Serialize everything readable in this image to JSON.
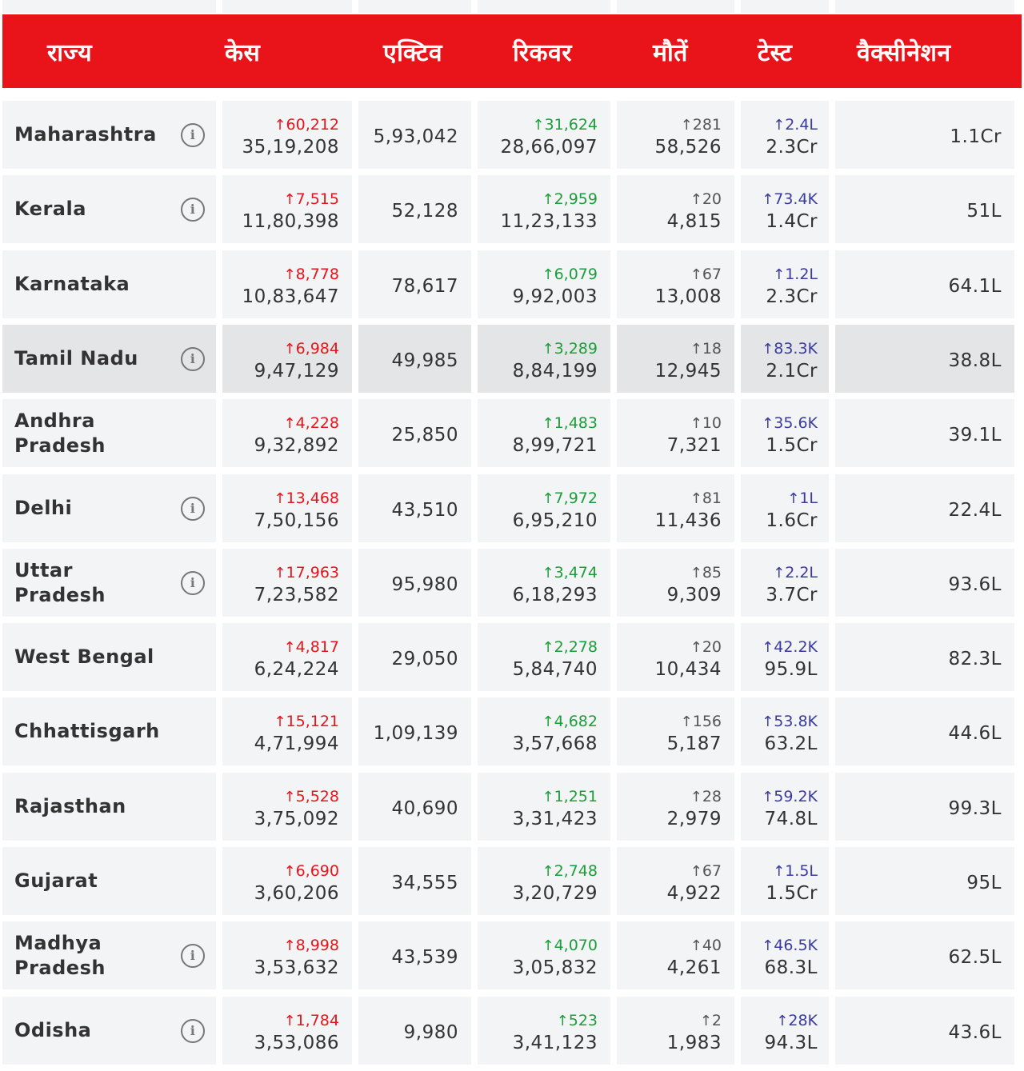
{
  "header": {
    "state": "राज्य",
    "cases": "केस",
    "active": "एक्टिव",
    "recovered": "रिकवर",
    "deaths": "मौतें",
    "tests": "टेस्ट",
    "vaccination": "वैक्सीनेशन"
  },
  "colors": {
    "header_bg": "#e8141a",
    "cases_delta": "#e8141a",
    "recovered_delta": "#1b9e3a",
    "deaths_delta": "#555555",
    "tests_delta": "#3a3aa0",
    "cell_bg": "#f3f4f6",
    "highlight_bg": "#e4e5e7"
  },
  "arrow": "↑",
  "info_glyph": "i",
  "rows": [
    {
      "state": "Maharashtra",
      "info": true,
      "cases_delta": "60,212",
      "cases": "35,19,208",
      "active": "5,93,042",
      "rec_delta": "31,624",
      "recovered": "28,66,097",
      "death_delta": "281",
      "deaths": "58,526",
      "test_delta": "2.4L",
      "tests": "2.3Cr",
      "vaccination": "1.1Cr"
    },
    {
      "state": "Kerala",
      "info": true,
      "cases_delta": "7,515",
      "cases": "11,80,398",
      "active": "52,128",
      "rec_delta": "2,959",
      "recovered": "11,23,133",
      "death_delta": "20",
      "deaths": "4,815",
      "test_delta": "73.4K",
      "tests": "1.4Cr",
      "vaccination": "51L"
    },
    {
      "state": "Karnataka",
      "info": false,
      "cases_delta": "8,778",
      "cases": "10,83,647",
      "active": "78,617",
      "rec_delta": "6,079",
      "recovered": "9,92,003",
      "death_delta": "67",
      "deaths": "13,008",
      "test_delta": "1.2L",
      "tests": "2.3Cr",
      "vaccination": "64.1L"
    },
    {
      "state": "Tamil Nadu",
      "info": true,
      "highlight": true,
      "cases_delta": "6,984",
      "cases": "9,47,129",
      "active": "49,985",
      "rec_delta": "3,289",
      "recovered": "8,84,199",
      "death_delta": "18",
      "deaths": "12,945",
      "test_delta": "83.3K",
      "tests": "2.1Cr",
      "vaccination": "38.8L"
    },
    {
      "state": "Andhra Pradesh",
      "info": false,
      "cases_delta": "4,228",
      "cases": "9,32,892",
      "active": "25,850",
      "rec_delta": "1,483",
      "recovered": "8,99,721",
      "death_delta": "10",
      "deaths": "7,321",
      "test_delta": "35.6K",
      "tests": "1.5Cr",
      "vaccination": "39.1L"
    },
    {
      "state": "Delhi",
      "info": true,
      "cases_delta": "13,468",
      "cases": "7,50,156",
      "active": "43,510",
      "rec_delta": "7,972",
      "recovered": "6,95,210",
      "death_delta": "81",
      "deaths": "11,436",
      "test_delta": "1L",
      "tests": "1.6Cr",
      "vaccination": "22.4L"
    },
    {
      "state": "Uttar Pradesh",
      "info": true,
      "cases_delta": "17,963",
      "cases": "7,23,582",
      "active": "95,980",
      "rec_delta": "3,474",
      "recovered": "6,18,293",
      "death_delta": "85",
      "deaths": "9,309",
      "test_delta": "2.2L",
      "tests": "3.7Cr",
      "vaccination": "93.6L"
    },
    {
      "state": "West Bengal",
      "info": false,
      "cases_delta": "4,817",
      "cases": "6,24,224",
      "active": "29,050",
      "rec_delta": "2,278",
      "recovered": "5,84,740",
      "death_delta": "20",
      "deaths": "10,434",
      "test_delta": "42.2K",
      "tests": "95.9L",
      "vaccination": "82.3L"
    },
    {
      "state": "Chhattisgarh",
      "info": false,
      "cases_delta": "15,121",
      "cases": "4,71,994",
      "active": "1,09,139",
      "rec_delta": "4,682",
      "recovered": "3,57,668",
      "death_delta": "156",
      "deaths": "5,187",
      "test_delta": "53.8K",
      "tests": "63.2L",
      "vaccination": "44.6L"
    },
    {
      "state": "Rajasthan",
      "info": false,
      "cases_delta": "5,528",
      "cases": "3,75,092",
      "active": "40,690",
      "rec_delta": "1,251",
      "recovered": "3,31,423",
      "death_delta": "28",
      "deaths": "2,979",
      "test_delta": "59.2K",
      "tests": "74.8L",
      "vaccination": "99.3L"
    },
    {
      "state": "Gujarat",
      "info": false,
      "cases_delta": "6,690",
      "cases": "3,60,206",
      "active": "34,555",
      "rec_delta": "2,748",
      "recovered": "3,20,729",
      "death_delta": "67",
      "deaths": "4,922",
      "test_delta": "1.5L",
      "tests": "1.5Cr",
      "vaccination": "95L"
    },
    {
      "state": "Madhya Pradesh",
      "info": true,
      "cases_delta": "8,998",
      "cases": "3,53,632",
      "active": "43,539",
      "rec_delta": "4,070",
      "recovered": "3,05,832",
      "death_delta": "40",
      "deaths": "4,261",
      "test_delta": "46.5K",
      "tests": "68.3L",
      "vaccination": "62.5L"
    },
    {
      "state": "Odisha",
      "info": true,
      "cases_delta": "1,784",
      "cases": "3,53,086",
      "active": "9,980",
      "rec_delta": "523",
      "recovered": "3,41,123",
      "death_delta": "2",
      "deaths": "1,983",
      "test_delta": "28K",
      "tests": "94.3L",
      "vaccination": "43.6L"
    }
  ]
}
